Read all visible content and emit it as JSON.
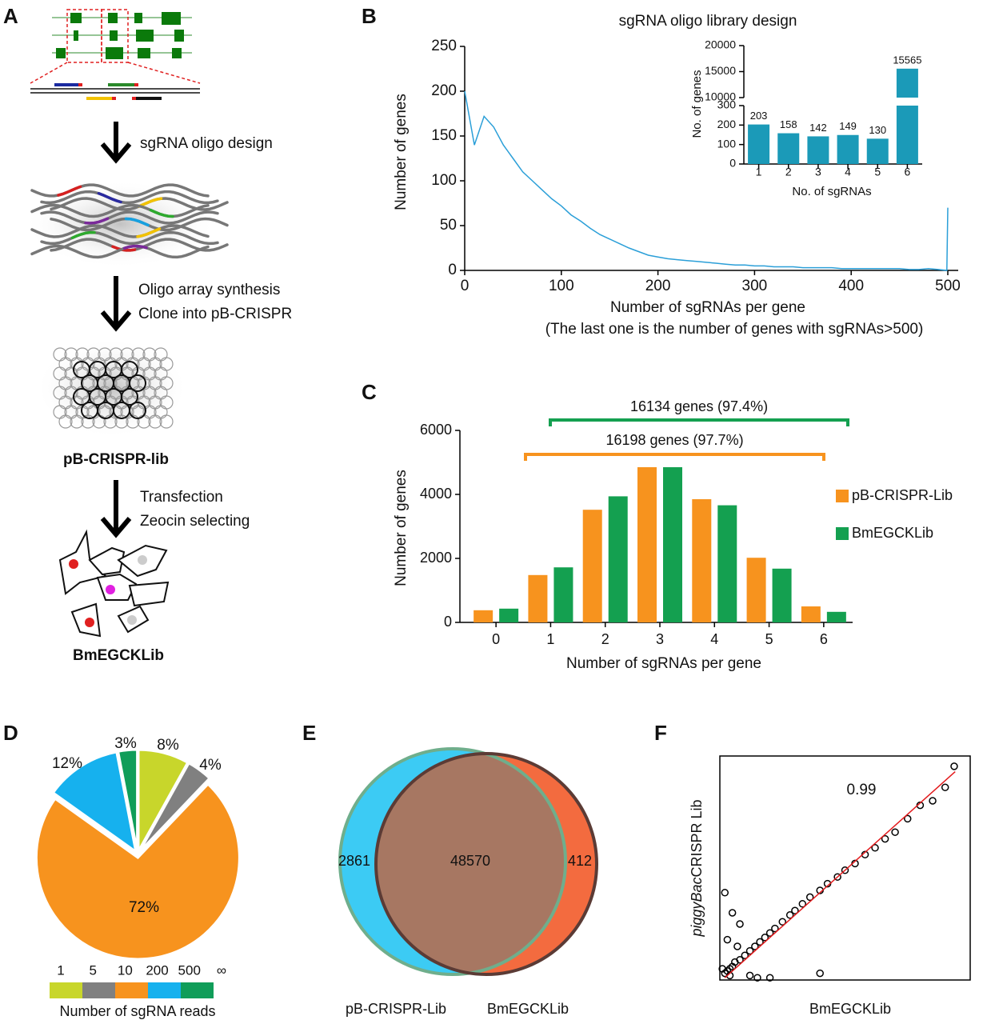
{
  "panel_labels": [
    "A",
    "B",
    "C",
    "D",
    "E",
    "F"
  ],
  "workflow": {
    "steps": [
      [
        "sgRNA oligo design"
      ],
      [
        "Oligo array synthesis",
        "Clone into pB-CRISPR"
      ],
      [
        "Transfection",
        "Zeocin selecting"
      ]
    ],
    "products": [
      "pB-CRISPR-lib",
      "BmEGCKLib"
    ]
  },
  "chart_data": [
    {
      "type": "line",
      "title": "sgRNA oligo library design",
      "xlabel": "Number of sgRNAs per gene",
      "note": "(The last one is the number of genes with sgRNAs>500)",
      "ylabel": "Number of genes",
      "x": [
        0,
        10,
        20,
        30,
        40,
        50,
        60,
        70,
        80,
        90,
        100,
        110,
        120,
        130,
        140,
        150,
        160,
        170,
        180,
        190,
        200,
        210,
        220,
        230,
        240,
        250,
        260,
        270,
        280,
        290,
        300,
        310,
        320,
        330,
        340,
        350,
        360,
        370,
        380,
        390,
        400,
        410,
        420,
        430,
        440,
        450,
        460,
        470,
        480,
        490,
        499,
        500
      ],
      "values": [
        200,
        140,
        172,
        160,
        140,
        125,
        110,
        100,
        90,
        80,
        72,
        62,
        55,
        47,
        40,
        35,
        30,
        25,
        21,
        17,
        15,
        13,
        12,
        11,
        10,
        9,
        8,
        7,
        6,
        6,
        5,
        5,
        4,
        4,
        4,
        3,
        3,
        3,
        3,
        2,
        2,
        2,
        2,
        2,
        2,
        2,
        1,
        1,
        2,
        1,
        0,
        70
      ],
      "color": "#2b9fd8",
      "xlim": [
        0,
        500
      ],
      "ylim": [
        0,
        250
      ],
      "xticks": [
        0,
        100,
        200,
        300,
        400,
        500
      ],
      "yticks": [
        0,
        50,
        100,
        150,
        200,
        250
      ]
    },
    {
      "type": "bar",
      "xlabel": "No. of sgRNAs",
      "ylabel": "No. of genes",
      "categories": [
        "1",
        "2",
        "3",
        "4",
        "5",
        "6"
      ],
      "values": [
        203,
        158,
        142,
        149,
        130,
        15565
      ],
      "color": "#1b9ab8",
      "ylim": [
        0,
        20000
      ],
      "axis_break": [
        300,
        10000
      ],
      "yticks": [
        0,
        100,
        200,
        300,
        10000,
        15000,
        20000
      ],
      "value_labels_shown": true
    },
    {
      "type": "bar",
      "xlabel": "Number of sgRNAs per gene",
      "ylabel": "Number of genes",
      "categories": [
        "0",
        "1",
        "2",
        "3",
        "4",
        "5",
        "6"
      ],
      "series": [
        {
          "name": "pB-CRISPR-Lib",
          "color": "#f7931e",
          "values": [
            380,
            1480,
            3520,
            4850,
            3850,
            2020,
            500
          ]
        },
        {
          "name": "BmEGCKLib",
          "color": "#14a050",
          "values": [
            430,
            1720,
            3940,
            4850,
            3660,
            1680,
            330
          ]
        }
      ],
      "ylim": [
        0,
        6000
      ],
      "yticks": [
        0,
        2000,
        4000,
        6000
      ],
      "legend": "right",
      "annotations": [
        {
          "text": "16134 genes (97.4%)",
          "color": "#14a050"
        },
        {
          "text": "16198 genes (97.7%)",
          "color": "#f7931e"
        }
      ]
    },
    {
      "type": "pie",
      "values": [
        8,
        4,
        72,
        12,
        3
      ],
      "value_labels": [
        "8%",
        "4%",
        "72%",
        "12%",
        "3%"
      ],
      "colors": [
        "#c8d62b",
        "#808080",
        "#f7931e",
        "#16b1ee",
        "#109d59"
      ],
      "legend_ticks": [
        "1",
        "5",
        "10",
        "200",
        "500",
        "∞"
      ],
      "legend_title": "Number of sgRNA reads"
    },
    {
      "type": "venn",
      "sets": [
        {
          "name": "pB-CRISPR-Lib",
          "color": "#3ccbf4",
          "edge": "#6fae8c"
        },
        {
          "name": "BmEGCKLib",
          "color": "#f36b3f",
          "edge": "#5b3b35"
        }
      ],
      "overlap_color": "#a77762",
      "regions": [
        2861,
        48570,
        412
      ]
    },
    {
      "type": "scatter",
      "xlabel": "BmEGCKLib",
      "ylabel_italic": "piggyBac",
      "ylabel": "CRISPR Lib",
      "annotation": "0.99",
      "xlim": [
        0,
        1
      ],
      "ylim": [
        0,
        1
      ],
      "color": "#000000",
      "x": [
        0.02,
        0.03,
        0.04,
        0.05,
        0.06,
        0.08,
        0.1,
        0.12,
        0.14,
        0.16,
        0.18,
        0.2,
        0.22,
        0.25,
        0.28,
        0.3,
        0.33,
        0.36,
        0.4,
        0.43,
        0.47,
        0.5,
        0.54,
        0.58,
        0.62,
        0.66,
        0.7,
        0.75,
        0.8,
        0.85,
        0.9,
        0.936,
        0.02,
        0.05,
        0.08,
        0.03,
        0.12,
        0.15,
        0.2,
        0.07,
        0.01,
        0.04,
        0.4
      ],
      "y": [
        0.03,
        0.04,
        0.05,
        0.06,
        0.08,
        0.09,
        0.11,
        0.13,
        0.15,
        0.17,
        0.19,
        0.21,
        0.23,
        0.26,
        0.29,
        0.31,
        0.34,
        0.37,
        0.4,
        0.43,
        0.46,
        0.49,
        0.52,
        0.56,
        0.59,
        0.63,
        0.66,
        0.72,
        0.78,
        0.8,
        0.86,
        0.954,
        0.39,
        0.3,
        0.25,
        0.18,
        0.02,
        0.01,
        0.01,
        0.15,
        0.05,
        0.02,
        0.03
      ],
      "fit": {
        "color": "#e31a1c",
        "x": [
          0.02,
          0.94
        ],
        "y": [
          0.01,
          0.93
        ]
      }
    }
  ]
}
